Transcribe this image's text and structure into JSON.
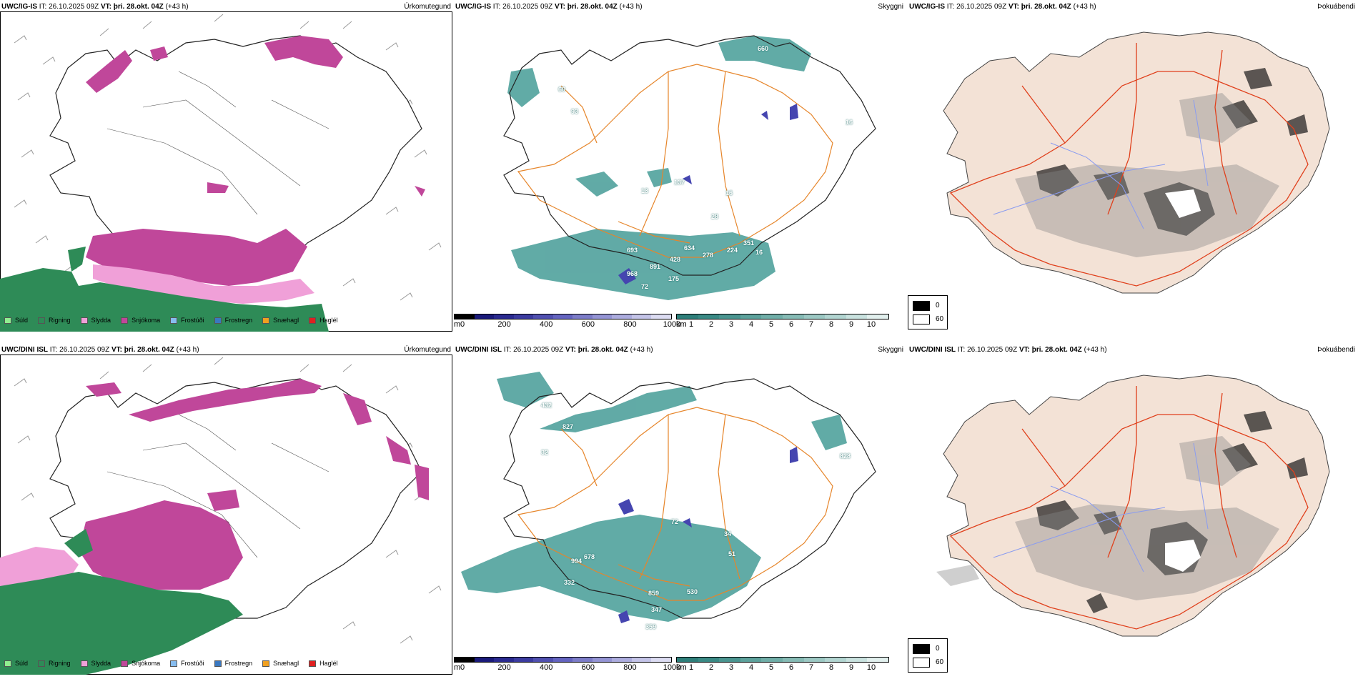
{
  "rows": [
    {
      "model": "UWC/IG-IS",
      "it_label": "IT:",
      "it_value": "26.10.2025 09Z",
      "vt_label": "VT:",
      "vt_value": "þri. 28.okt. 04Z",
      "lead": "(+43 h)",
      "ceiling_labels": [
        "660",
        "60",
        "93",
        "13",
        "137",
        "16",
        "16",
        "28",
        "693",
        "634",
        "891",
        "428",
        "968",
        "72",
        "175",
        "278",
        "224",
        "351",
        "16"
      ]
    },
    {
      "model": "UWC/DINI ISL",
      "it_label": "IT:",
      "it_value": "26.10.2025 09Z",
      "vt_label": "VT:",
      "vt_value": "þri. 28.okt. 04Z",
      "lead": "(+43 h)",
      "ceiling_labels": [
        "432",
        "827",
        "32",
        "828",
        "72",
        "34",
        "51",
        "994",
        "678",
        "332",
        "859",
        "530",
        "347",
        "359"
      ]
    }
  ],
  "panel_names": {
    "precip": "Úrkomutegund",
    "ceiling": "Skyggni",
    "fog": "Þokuábendi"
  },
  "precip_legend": [
    {
      "label": "Súld",
      "color": "#90ee90"
    },
    {
      "label": "Rigning",
      "color": "#2e8b57"
    },
    {
      "label": "Slydda",
      "color": "#f0a0d8"
    },
    {
      "label": "Snjókoma",
      "color": "#c0479a"
    },
    {
      "label": "Frostúði",
      "color": "#87bdf0"
    },
    {
      "label": "Frostregn",
      "color": "#3a78c0"
    },
    {
      "label": "Snæhagl",
      "color": "#f0a020"
    },
    {
      "label": "Haglél",
      "color": "#e02020"
    }
  ],
  "ceiling_bar": {
    "unit": "m",
    "ticks": [
      "0",
      "200",
      "400",
      "600",
      "800",
      "1000"
    ],
    "colors": [
      "#000000",
      "#1a1a7a",
      "#2a2a90",
      "#3b3ba0",
      "#5050b0",
      "#6464c0",
      "#7c7cc8",
      "#9494d4",
      "#acacde",
      "#c4c4e8",
      "#dcdcf2"
    ]
  },
  "visibility_bar": {
    "unit": "km",
    "ticks": [
      "1",
      "2",
      "3",
      "4",
      "5",
      "6",
      "7",
      "8",
      "9",
      "10"
    ],
    "colors": [
      "#2e7f7a",
      "#3a8a85",
      "#4a9590",
      "#5da29c",
      "#70aea8",
      "#86bbb5",
      "#9cc8c3",
      "#b2d5d1",
      "#c9e2df",
      "#e2f0ee"
    ]
  },
  "fog_legend": {
    "low_label": "0",
    "high_label": "60",
    "low_color": "#000000",
    "high_color": "#ffffff"
  },
  "colors": {
    "snow": "#c0479a",
    "sleet": "#f0a0d8",
    "rain": "#2e8b57",
    "drizzle": "#90ee90",
    "teal": "#3a9690",
    "road": "#e6852a",
    "road_red": "#e0401c",
    "land": "#f3e2d6",
    "river": "#8a9cf0"
  }
}
